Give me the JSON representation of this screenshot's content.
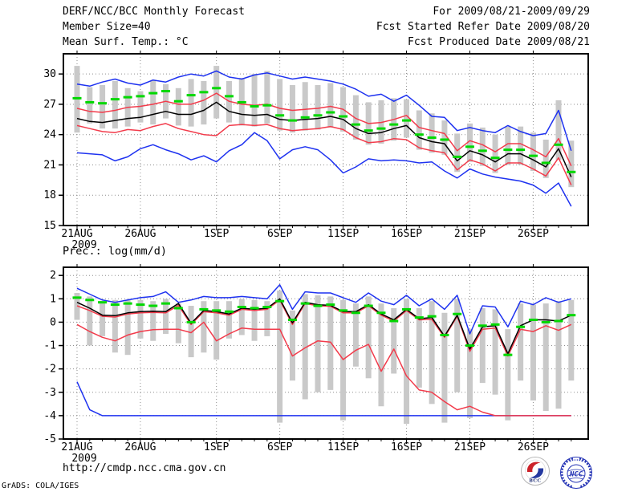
{
  "header": {
    "title": "DERF/NCC/BCC Monthly Forecast",
    "member_size": "Member Size=40",
    "valid_range": "For 2009/08/21-2009/09/29",
    "refer_date": "Fcst Started Refer Date 2009/08/20",
    "produced_date": "Fcst Produced Date 2009/08/21"
  },
  "footer": {
    "url": "http://cmdp.ncc.cma.gov.cn",
    "grads_credit": "GrADS: COLA/IGES",
    "bcc_logo_text": "BCC",
    "ncc_logo_text": "NCC"
  },
  "colors": {
    "envelope_blue": "#1e32f0",
    "spread_red": "#f23b4b",
    "mean_black": "#000000",
    "median_green": "#00d800",
    "bar_grey": "#c9c9c9",
    "grid_grey": "#8e8e8e",
    "frame_black": "#000000"
  },
  "chart_data": [
    {
      "type": "line",
      "title": "Mean Surf. Temp.: °C",
      "x_start_label": "21AUG",
      "x_year_label": "2009",
      "x_ticklabels": [
        "21AUG",
        "26AUG",
        "1SEP",
        "6SEP",
        "11SEP",
        "16SEP",
        "21SEP",
        "26SEP"
      ],
      "x_tick_days": [
        0,
        5,
        11,
        16,
        21,
        26,
        31,
        36
      ],
      "n_points": 40,
      "ylim": [
        15,
        32
      ],
      "yticks": [
        15,
        18,
        21,
        24,
        27,
        30
      ],
      "grid": true,
      "legend": "none",
      "range_bars": {
        "name": "member-spread-bar",
        "low": [
          24.2,
          25.1,
          24.6,
          24.6,
          24.8,
          25.2,
          25.0,
          25.6,
          24.9,
          24.8,
          25.0,
          25.6,
          25.2,
          24.9,
          24.8,
          25.1,
          24.4,
          24.2,
          24.4,
          24.5,
          24.7,
          24.3,
          23.5,
          23.0,
          23.1,
          23.4,
          23.7,
          22.5,
          22.2,
          22.0,
          20.3,
          21.3,
          20.9,
          20.2,
          21.0,
          21.0,
          20.4,
          19.7,
          21.5,
          18.8
        ],
        "high": [
          30.8,
          28.7,
          28.9,
          29.3,
          28.6,
          28.3,
          29.4,
          29.0,
          28.6,
          29.5,
          29.3,
          30.8,
          29.3,
          29.6,
          30.0,
          30.3,
          29.5,
          28.9,
          29.2,
          28.9,
          29.1,
          28.7,
          27.9,
          27.2,
          27.4,
          27.6,
          27.5,
          26.4,
          26.1,
          25.4,
          24.1,
          25.1,
          24.7,
          24.0,
          24.8,
          24.8,
          24.2,
          23.5,
          27.4,
          23.4
        ]
      },
      "series": [
        {
          "name": "ensemble-max",
          "color": "#1e32f0",
          "style": "line",
          "values": [
            29.0,
            28.8,
            29.2,
            29.5,
            29.1,
            28.9,
            29.4,
            29.2,
            29.7,
            30.0,
            29.8,
            30.3,
            29.7,
            29.5,
            29.9,
            30.1,
            29.8,
            29.5,
            29.7,
            29.5,
            29.3,
            29.0,
            28.5,
            27.8,
            28.0,
            27.3,
            27.9,
            26.9,
            25.8,
            25.7,
            24.4,
            24.7,
            24.4,
            24.2,
            24.9,
            24.3,
            23.9,
            24.1,
            26.4,
            22.4
          ]
        },
        {
          "name": "ensemble-min",
          "color": "#1e32f0",
          "style": "line",
          "values": [
            22.2,
            22.1,
            22.0,
            21.4,
            21.8,
            22.6,
            23.0,
            22.5,
            22.1,
            21.5,
            21.9,
            21.3,
            22.4,
            23.0,
            24.2,
            23.4,
            21.6,
            22.5,
            22.8,
            22.5,
            21.5,
            20.2,
            20.8,
            21.6,
            21.4,
            21.5,
            21.4,
            21.2,
            21.3,
            20.4,
            19.7,
            20.6,
            20.1,
            19.8,
            19.6,
            19.4,
            19.0,
            18.2,
            19.2,
            16.9
          ]
        },
        {
          "name": "upper-spread",
          "color": "#f23b4b",
          "style": "line",
          "values": [
            26.6,
            26.3,
            26.2,
            26.4,
            26.7,
            26.8,
            27.0,
            27.3,
            27.0,
            27.0,
            27.4,
            28.1,
            27.3,
            27.0,
            26.9,
            27.0,
            26.6,
            26.4,
            26.5,
            26.6,
            26.8,
            26.5,
            25.6,
            25.1,
            25.2,
            25.5,
            25.9,
            24.7,
            24.4,
            24.1,
            22.4,
            23.4,
            23.0,
            22.3,
            23.1,
            23.1,
            22.5,
            21.8,
            23.6,
            20.9
          ]
        },
        {
          "name": "lower-spread",
          "color": "#f23b4b",
          "style": "line",
          "values": [
            24.9,
            24.6,
            24.3,
            24.2,
            24.5,
            24.4,
            24.8,
            25.1,
            24.6,
            24.3,
            24.0,
            23.9,
            24.9,
            25.0,
            24.9,
            25.0,
            24.6,
            24.4,
            24.5,
            24.6,
            24.8,
            24.5,
            23.7,
            23.2,
            23.3,
            23.6,
            23.5,
            22.7,
            22.4,
            22.2,
            20.5,
            21.5,
            21.1,
            20.4,
            21.2,
            21.2,
            20.6,
            19.9,
            21.7,
            19.0
          ]
        },
        {
          "name": "ensemble-mean",
          "color": "#000000",
          "style": "line",
          "values": [
            25.6,
            25.3,
            25.2,
            25.4,
            25.6,
            25.7,
            26.0,
            26.3,
            26.0,
            26.0,
            26.4,
            27.2,
            26.3,
            26.0,
            25.9,
            26.0,
            25.5,
            25.4,
            25.5,
            25.6,
            25.8,
            25.5,
            24.6,
            24.1,
            24.2,
            24.6,
            24.9,
            23.7,
            23.3,
            23.1,
            21.4,
            22.4,
            22.0,
            21.3,
            22.1,
            22.1,
            21.5,
            20.8,
            22.6,
            19.8
          ]
        },
        {
          "name": "ensemble-median",
          "color": "#00d800",
          "style": "dashes",
          "values": [
            27.6,
            27.2,
            27.1,
            27.5,
            27.7,
            27.8,
            28.1,
            28.3,
            27.3,
            27.9,
            28.2,
            28.6,
            27.8,
            27.2,
            26.8,
            26.9,
            25.9,
            25.4,
            25.7,
            25.9,
            26.2,
            25.8,
            25.0,
            24.4,
            24.6,
            25.0,
            25.4,
            24.0,
            23.7,
            23.5,
            21.8,
            22.8,
            22.4,
            21.7,
            22.5,
            22.5,
            21.9,
            21.2,
            23.0,
            20.3
          ]
        }
      ]
    },
    {
      "type": "line",
      "title": "Prec.: log(mm/d)",
      "x_start_label": "21AUG",
      "x_year_label": "2009",
      "x_ticklabels": [
        "21AUG",
        "26AUG",
        "1SEP",
        "6SEP",
        "11SEP",
        "16SEP",
        "21SEP",
        "26SEP"
      ],
      "x_tick_days": [
        0,
        5,
        11,
        16,
        21,
        26,
        31,
        36
      ],
      "n_points": 40,
      "ylim": [
        -5,
        2.35
      ],
      "yticks": [
        -5,
        -4,
        -3,
        -2,
        -1,
        0,
        1,
        2
      ],
      "grid": true,
      "legend": "none",
      "range_bars": {
        "name": "member-spread-bar",
        "low": [
          0.1,
          -1.0,
          -0.6,
          -1.3,
          -1.4,
          -0.7,
          -0.8,
          -0.5,
          -0.9,
          -1.5,
          -1.3,
          -1.6,
          -0.7,
          -0.55,
          -0.8,
          -0.6,
          -4.3,
          -2.5,
          -3.3,
          -3.0,
          -2.9,
          -4.2,
          -1.9,
          -2.4,
          -3.6,
          -2.2,
          -4.35,
          -2.8,
          -3.5,
          -4.3,
          -3.0,
          -4.1,
          -2.6,
          -3.1,
          -4.2,
          -2.5,
          -3.35,
          -3.8,
          -3.7,
          -2.5
        ],
        "high": [
          1.25,
          1.1,
          0.9,
          0.95,
          0.95,
          0.95,
          0.9,
          1.0,
          0.8,
          0.7,
          0.9,
          0.9,
          0.9,
          1.0,
          0.95,
          0.9,
          1.35,
          0.5,
          1.2,
          1.15,
          1.1,
          0.95,
          0.8,
          1.1,
          0.8,
          0.6,
          1.0,
          0.6,
          0.9,
          0.4,
          1.0,
          -0.3,
          0.6,
          0.55,
          -0.3,
          0.8,
          0.75,
          0.8,
          0.9,
          0.95
        ]
      },
      "series": [
        {
          "name": "ensemble-max",
          "color": "#1e32f0",
          "style": "line",
          "values": [
            1.45,
            1.2,
            0.95,
            0.85,
            0.95,
            1.05,
            1.1,
            1.3,
            0.85,
            0.95,
            1.1,
            1.05,
            1.05,
            1.1,
            1.05,
            1.0,
            1.6,
            0.55,
            1.3,
            1.25,
            1.25,
            1.05,
            0.85,
            1.25,
            0.9,
            0.75,
            1.15,
            0.7,
            1.0,
            0.55,
            1.15,
            -0.5,
            0.7,
            0.65,
            -0.2,
            0.9,
            0.75,
            1.05,
            0.85,
            1.0
          ]
        },
        {
          "name": "ensemble-min",
          "color": "#1e32f0",
          "style": "line",
          "values": [
            -2.55,
            -3.75,
            -4.0,
            -4.0,
            -4.0,
            -4.0,
            -4.0,
            -4.0,
            -4.0,
            -4.0,
            -4.0,
            -4.0,
            -4.0,
            -4.0,
            -4.0,
            -4.0,
            -4.0,
            -4.0,
            -4.0,
            -4.0,
            -4.0,
            -4.0,
            -4.0,
            -4.0,
            -4.0,
            -4.0,
            -4.0,
            -4.0,
            -4.0,
            -4.0,
            -4.0,
            -4.0,
            -4.0,
            -4.0,
            -4.0,
            -4.0,
            -4.0,
            -4.0,
            -4.0,
            -4.0
          ]
        },
        {
          "name": "upper-spread",
          "color": "#f23b4b",
          "style": "line",
          "values": [
            0.7,
            0.5,
            0.25,
            0.22,
            0.35,
            0.4,
            0.42,
            0.4,
            0.72,
            -0.1,
            0.45,
            0.4,
            0.3,
            0.55,
            0.5,
            0.55,
            0.95,
            -0.1,
            0.8,
            0.7,
            0.68,
            0.4,
            0.4,
            0.7,
            0.3,
            0.05,
            0.5,
            0.1,
            0.12,
            -0.65,
            0.25,
            -1.25,
            -0.3,
            -0.25,
            -1.45,
            -0.3,
            -0.4,
            -0.15,
            -0.35,
            -0.1
          ]
        },
        {
          "name": "lower-spread",
          "color": "#f23b4b",
          "style": "line",
          "values": [
            -0.1,
            -0.4,
            -0.65,
            -0.8,
            -0.55,
            -0.4,
            -0.32,
            -0.3,
            -0.3,
            -0.45,
            0.0,
            -0.8,
            -0.5,
            -0.25,
            -0.3,
            -0.3,
            -0.3,
            -1.45,
            -1.1,
            -0.8,
            -0.85,
            -1.6,
            -1.2,
            -0.95,
            -2.1,
            -1.15,
            -2.3,
            -2.9,
            -3.0,
            -3.4,
            -3.75,
            -3.6,
            -3.85,
            -4.0,
            -4.0,
            -4.0,
            -4.0,
            -4.0,
            -4.0,
            -4.0
          ]
        },
        {
          "name": "ensemble-mean",
          "color": "#000000",
          "style": "line",
          "values": [
            0.85,
            0.6,
            0.3,
            0.28,
            0.4,
            0.45,
            0.47,
            0.45,
            0.8,
            -0.05,
            0.5,
            0.45,
            0.35,
            0.6,
            0.55,
            0.6,
            1.0,
            -0.03,
            0.85,
            0.75,
            0.72,
            0.45,
            0.45,
            0.75,
            0.35,
            0.1,
            0.55,
            0.15,
            0.2,
            -0.6,
            0.3,
            -1.15,
            -0.2,
            -0.15,
            -1.35,
            -0.15,
            0.1,
            0.1,
            0.05,
            0.3
          ]
        },
        {
          "name": "ensemble-median",
          "color": "#00d800",
          "style": "dashes",
          "values": [
            1.05,
            0.95,
            0.85,
            0.75,
            0.8,
            0.75,
            0.7,
            0.8,
            0.6,
            0.0,
            0.55,
            0.5,
            0.45,
            0.65,
            0.6,
            0.65,
            0.9,
            0.1,
            0.8,
            0.7,
            0.75,
            0.5,
            0.4,
            0.7,
            0.4,
            0.05,
            0.55,
            0.2,
            0.25,
            -0.55,
            0.35,
            -1.0,
            -0.15,
            -0.1,
            -1.4,
            -0.2,
            0.1,
            0.0,
            0.05,
            0.3
          ]
        }
      ]
    }
  ]
}
